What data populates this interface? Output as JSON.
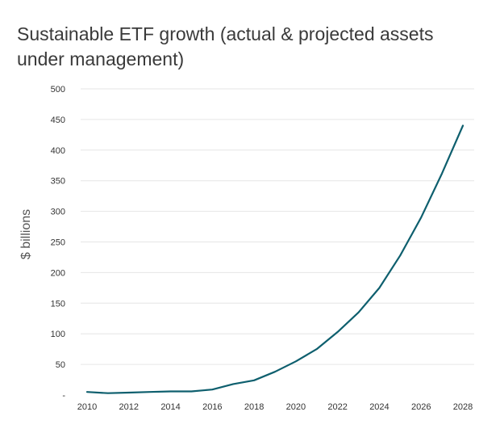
{
  "chart_data": {
    "type": "line",
    "title": "Sustainable ETF growth (actual & projected assets under management)",
    "xlabel": "",
    "ylabel": "$ billions",
    "ylim": [
      0,
      500
    ],
    "xlim": [
      2010,
      2028
    ],
    "yticks": [
      0,
      50,
      100,
      150,
      200,
      250,
      300,
      350,
      400,
      450,
      500
    ],
    "ytick_labels": [
      "-",
      "50",
      "100",
      "150",
      "200",
      "250",
      "300",
      "350",
      "400",
      "450",
      "500"
    ],
    "xticks": [
      2010,
      2012,
      2014,
      2016,
      2018,
      2020,
      2022,
      2024,
      2026,
      2028
    ],
    "grid": true,
    "legend": "none",
    "line_color": "#0e5f6e",
    "series": [
      {
        "x": [
          2010,
          2011,
          2012,
          2013,
          2014,
          2015,
          2016,
          2017,
          2018,
          2019,
          2020,
          2021,
          2022,
          2023,
          2024,
          2025,
          2026,
          2027,
          2028
        ],
        "values": [
          5,
          3,
          4,
          5,
          6,
          6,
          9,
          18,
          24,
          38,
          55,
          75,
          103,
          135,
          175,
          228,
          290,
          362,
          440
        ]
      }
    ]
  }
}
